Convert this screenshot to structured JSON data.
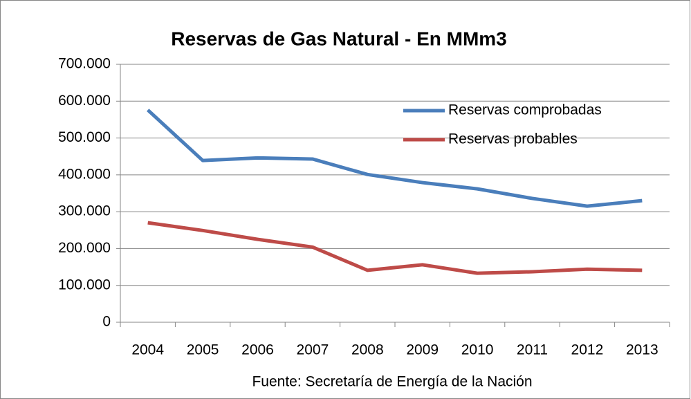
{
  "chart_data": {
    "type": "line",
    "title": "Reservas de Gas Natural - En MMm3",
    "source": "Fuente: Secretaría de Energía de la Nación",
    "categories": [
      "2004",
      "2005",
      "2006",
      "2007",
      "2008",
      "2009",
      "2010",
      "2011",
      "2012",
      "2013"
    ],
    "series": [
      {
        "name": "Reservas comprobadas",
        "color": "#4a7ebb",
        "values": [
          576000,
          439000,
          446000,
          443000,
          401000,
          379000,
          362000,
          336000,
          315000,
          330000
        ]
      },
      {
        "name": "Reservas probables",
        "color": "#be4b48",
        "values": [
          270000,
          249000,
          225000,
          204000,
          141000,
          156000,
          133000,
          137000,
          144000,
          141000
        ]
      }
    ],
    "ylim": [
      0,
      700000
    ],
    "yticks": [
      0,
      {
        "value": 100000,
        "label": "100.000"
      },
      {
        "value": 200000,
        "label": "200.000"
      },
      {
        "value": 300000,
        "label": "300.000"
      },
      {
        "value": 400000,
        "label": "400.000"
      },
      {
        "value": 500000,
        "label": "500.000"
      },
      {
        "value": 600000,
        "label": "600.000"
      },
      {
        "value": 700000,
        "label": "700.000"
      }
    ],
    "grid": true,
    "legend": "upper right"
  }
}
